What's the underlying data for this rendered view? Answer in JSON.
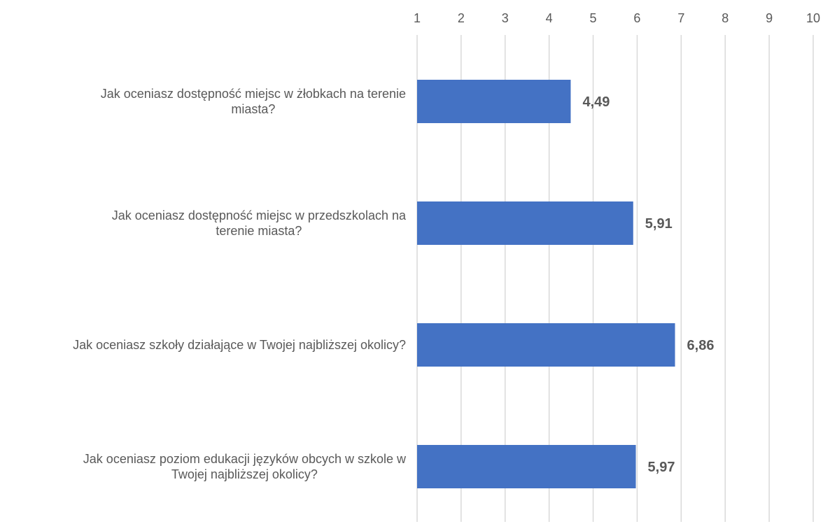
{
  "chart_data": {
    "type": "bar",
    "orientation": "horizontal",
    "categories": [
      [
        "Jak oceniasz dostępność miejsc w żłobkach na terenie",
        "miasta?"
      ],
      [
        "Jak oceniasz dostępność miejsc w przedszkolach na",
        "terenie miasta?"
      ],
      [
        "Jak oceniasz szkoły działające w Twojej najbliższej okolicy?"
      ],
      [
        "Jak oceniasz poziom edukacji języków obcych w szkole w",
        "Twojej najbliższej okolicy?"
      ]
    ],
    "values": [
      4.49,
      5.91,
      6.86,
      5.97
    ],
    "value_labels": [
      "4,49",
      "5,91",
      "6,86",
      "5,97"
    ],
    "xlim": [
      1,
      10
    ],
    "x_ticks": [
      "1",
      "2",
      "3",
      "4",
      "5",
      "6",
      "7",
      "8",
      "9",
      "10"
    ],
    "axis_position": "top",
    "grid": true,
    "bar_color": "#4472c4",
    "title": "",
    "xlabel": "",
    "ylabel": ""
  }
}
